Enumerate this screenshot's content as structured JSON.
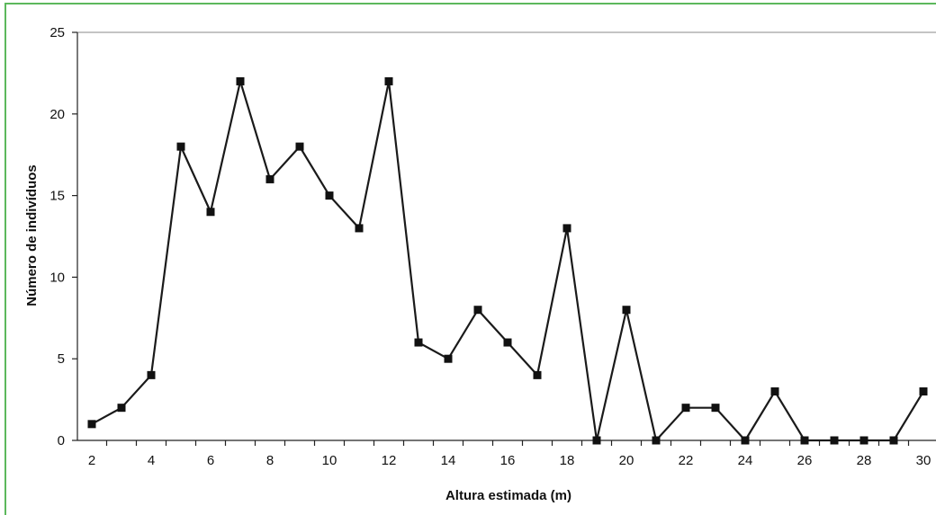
{
  "chart_data": {
    "type": "line",
    "xlabel": "Altura estimada (m)",
    "ylabel": "Número de indivíduos",
    "x": [
      2,
      3,
      4,
      5,
      6,
      7,
      8,
      9,
      10,
      11,
      12,
      13,
      14,
      15,
      16,
      17,
      18,
      19,
      20,
      21,
      22,
      23,
      24,
      25,
      26,
      27,
      28,
      29,
      30
    ],
    "y": [
      1,
      2,
      4,
      18,
      14,
      22,
      16,
      18,
      15,
      13,
      22,
      6,
      5,
      8,
      6,
      4,
      13,
      0,
      8,
      0,
      2,
      2,
      0,
      3,
      0,
      0,
      0,
      0,
      3
    ],
    "xticks": [
      2,
      4,
      6,
      8,
      10,
      12,
      14,
      16,
      18,
      20,
      22,
      24,
      26,
      28,
      30
    ],
    "yticks": [
      0,
      5,
      10,
      15,
      20,
      25
    ],
    "ylim": [
      0,
      25
    ],
    "xlim": [
      1.5,
      30.5
    ],
    "grid": "top-border-only",
    "line_color": "#1a1a1a",
    "marker": "square",
    "frame_color": "#5cb85c"
  }
}
